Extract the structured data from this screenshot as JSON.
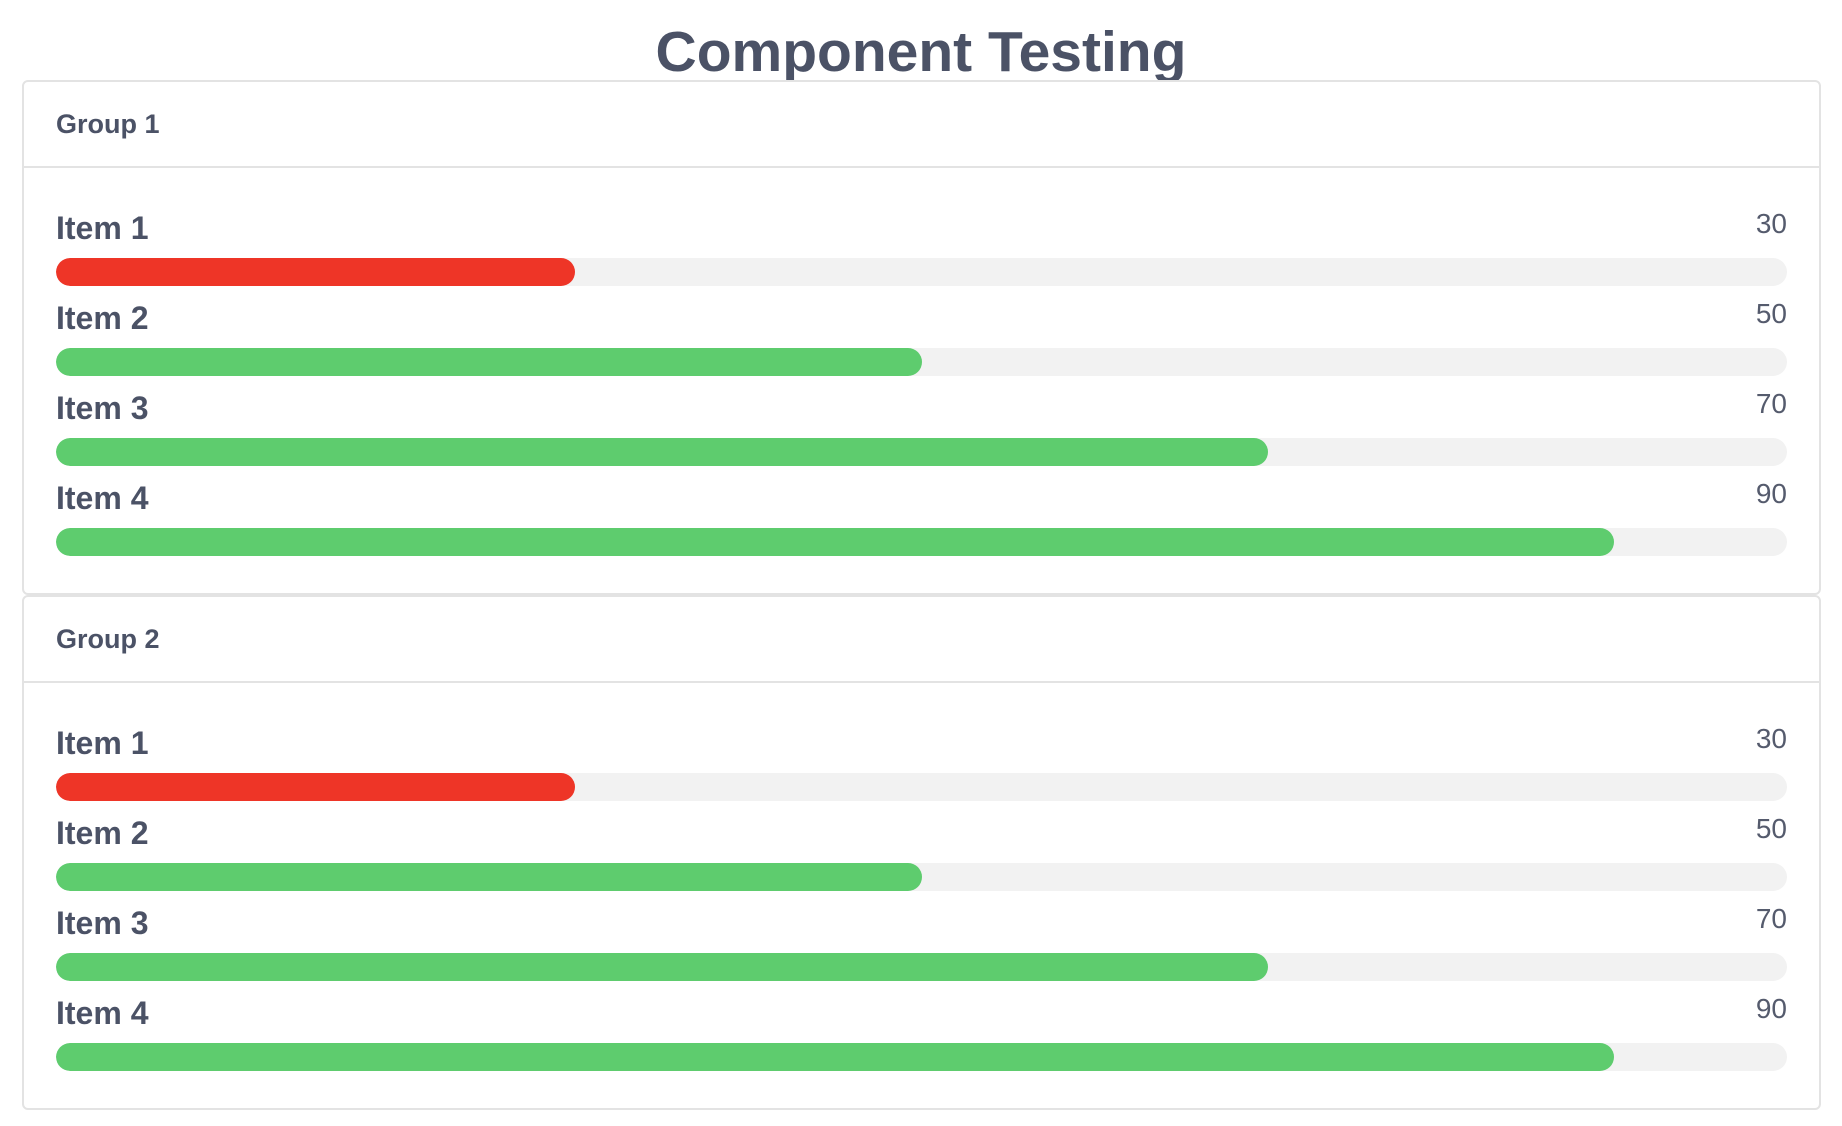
{
  "title": "Component Testing",
  "colors": {
    "low": "#ee3527",
    "ok": "#5ecc6e",
    "track": "#f2f2f2"
  },
  "max": 100,
  "groups": [
    {
      "name": "Group 1",
      "items": [
        {
          "label": "Item 1",
          "value": 30
        },
        {
          "label": "Item 2",
          "value": 50
        },
        {
          "label": "Item 3",
          "value": 70
        },
        {
          "label": "Item 4",
          "value": 90
        }
      ]
    },
    {
      "name": "Group 2",
      "items": [
        {
          "label": "Item 1",
          "value": 30
        },
        {
          "label": "Item 2",
          "value": 50
        },
        {
          "label": "Item 3",
          "value": 70
        },
        {
          "label": "Item 4",
          "value": 90
        }
      ]
    }
  ]
}
